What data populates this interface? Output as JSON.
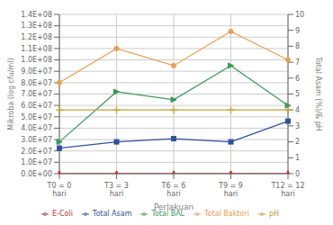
{
  "chart_data": {
    "type": "line",
    "categories": [
      "T0 = 0\nhari",
      "T3 = 3\nhari",
      "T6 = 6\nhari",
      "T9 = 9\nhari",
      "T12 = 12\nhari"
    ],
    "series": [
      {
        "name": "Total BAL",
        "color": "#3a9a5c",
        "marker": "triangle-right",
        "values": [
          28000000,
          72000000,
          65000000,
          95000000,
          60000000
        ]
      },
      {
        "name": "Total Bakteri",
        "color": "#e8a050",
        "marker": "circle",
        "values": [
          80000000,
          110000000,
          95000000,
          125000000,
          100000000
        ]
      },
      {
        "name": "E-Coli",
        "color": "#c03030",
        "marker": "triangle-up",
        "values": [
          200000,
          200000,
          200000,
          200000,
          200000
        ]
      },
      {
        "name": "pH",
        "color": "#c8a030",
        "marker": "plus",
        "axis": "y2",
        "values": [
          4,
          4,
          4,
          4,
          4
        ]
      },
      {
        "name": "Total Asam",
        "color": "#3050a0",
        "marker": "square",
        "axis": "y2",
        "values": [
          1.6,
          2,
          2.2,
          2,
          3.3
        ]
      }
    ],
    "xlabel": "Perlakuan",
    "ylabel": "Mikroba (log cfu/ml)",
    "y2label": "Total Asam (%)/& pH",
    "ylim": [
      0,
      140000000
    ],
    "yticks": [
      {
        "value": 0,
        "label": "0.0E+00"
      },
      {
        "value": 10000000,
        "label": "1.0E+07"
      },
      {
        "value": 20000000,
        "label": "2.0E+07"
      },
      {
        "value": 30000000,
        "label": "3.0E+07"
      },
      {
        "value": 40000000,
        "label": "4.0E+07"
      },
      {
        "value": 50000000,
        "label": "5.0E+07"
      },
      {
        "value": 60000000,
        "label": "6.0E+07"
      },
      {
        "value": 70000000,
        "label": "7.0E+07"
      },
      {
        "value": 80000000,
        "label": "8.0E+07"
      },
      {
        "value": 90000000,
        "label": "9.0E+07"
      },
      {
        "value": 100000000,
        "label": "1.0E+08"
      },
      {
        "value": 110000000,
        "label": "1.1E+08"
      },
      {
        "value": 120000000,
        "label": "1.2E+08"
      },
      {
        "value": 130000000,
        "label": "1.3E+08"
      },
      {
        "value": 140000000,
        "label": "1.4E+08"
      }
    ],
    "y2lim": [
      0,
      10
    ],
    "y2ticks": [
      0,
      1,
      2,
      3,
      4,
      5,
      6,
      7,
      8,
      9,
      10
    ],
    "grid": true,
    "legend": "bottom"
  }
}
